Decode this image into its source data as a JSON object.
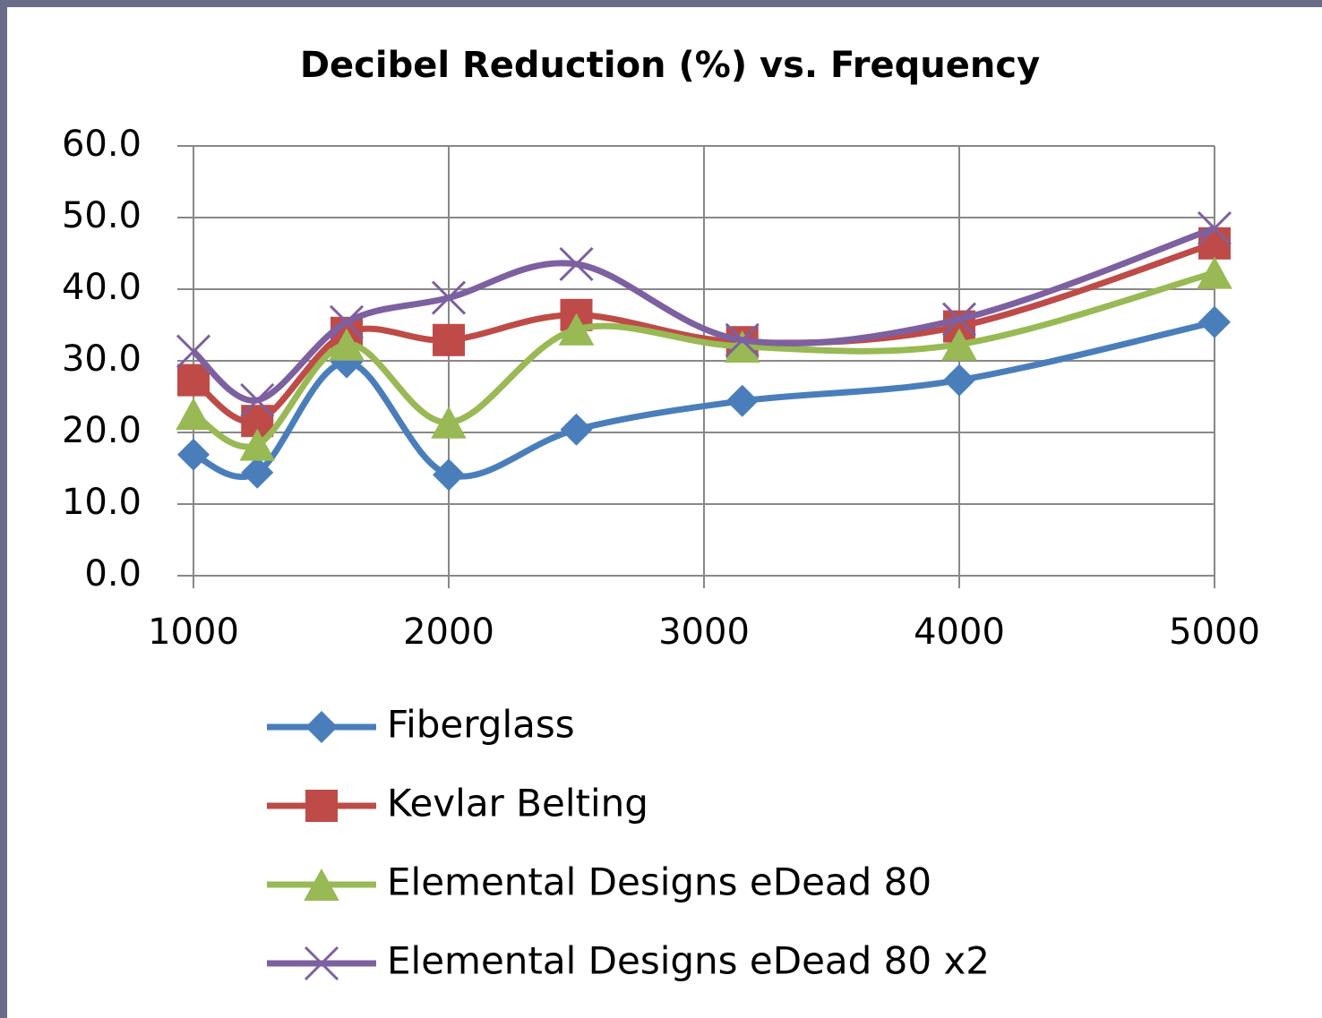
{
  "chart_data": {
    "type": "line",
    "title": "Decibel Reduction (%) vs. Frequency",
    "x": [
      1000,
      1250,
      1600,
      2000,
      2500,
      3150,
      4000,
      5000
    ],
    "series": [
      {
        "name": "Fiberglass",
        "color": "#4a7ebb",
        "marker": "diamond",
        "values": [
          16.9,
          14.4,
          29.8,
          14.1,
          20.4,
          24.4,
          27.3,
          35.4
        ]
      },
      {
        "name": "Kevlar Belting",
        "color": "#be4b48",
        "marker": "square",
        "values": [
          27.3,
          21.6,
          33.9,
          32.9,
          36.4,
          32.6,
          34.8,
          46.4
        ]
      },
      {
        "name": "Elemental Designs eDead 80",
        "color": "#98b954",
        "marker": "triangle",
        "values": [
          22.6,
          18.3,
          32.3,
          21.4,
          34.4,
          32.0,
          32.3,
          42.3
        ]
      },
      {
        "name": "Elemental Designs eDead 80 x2",
        "color": "#7d60a0",
        "marker": "x",
        "values": [
          31.3,
          24.5,
          35.4,
          38.8,
          43.5,
          32.9,
          35.8,
          48.5
        ]
      }
    ],
    "xlim": [
      1000,
      5000
    ],
    "xticks": [
      1000,
      2000,
      3000,
      4000,
      5000
    ],
    "ylim": [
      0,
      60
    ],
    "yticks": [
      {
        "value": 0,
        "label": "0.0"
      },
      {
        "value": 10,
        "label": "10.0"
      },
      {
        "value": 20,
        "label": "20.0"
      },
      {
        "value": 30,
        "label": "30.0"
      },
      {
        "value": 40,
        "label": "40.0"
      },
      {
        "value": 50,
        "label": "50.0"
      },
      {
        "value": 60,
        "label": "60.0"
      }
    ],
    "grid": true,
    "smooth": true,
    "legend": "bottom"
  }
}
